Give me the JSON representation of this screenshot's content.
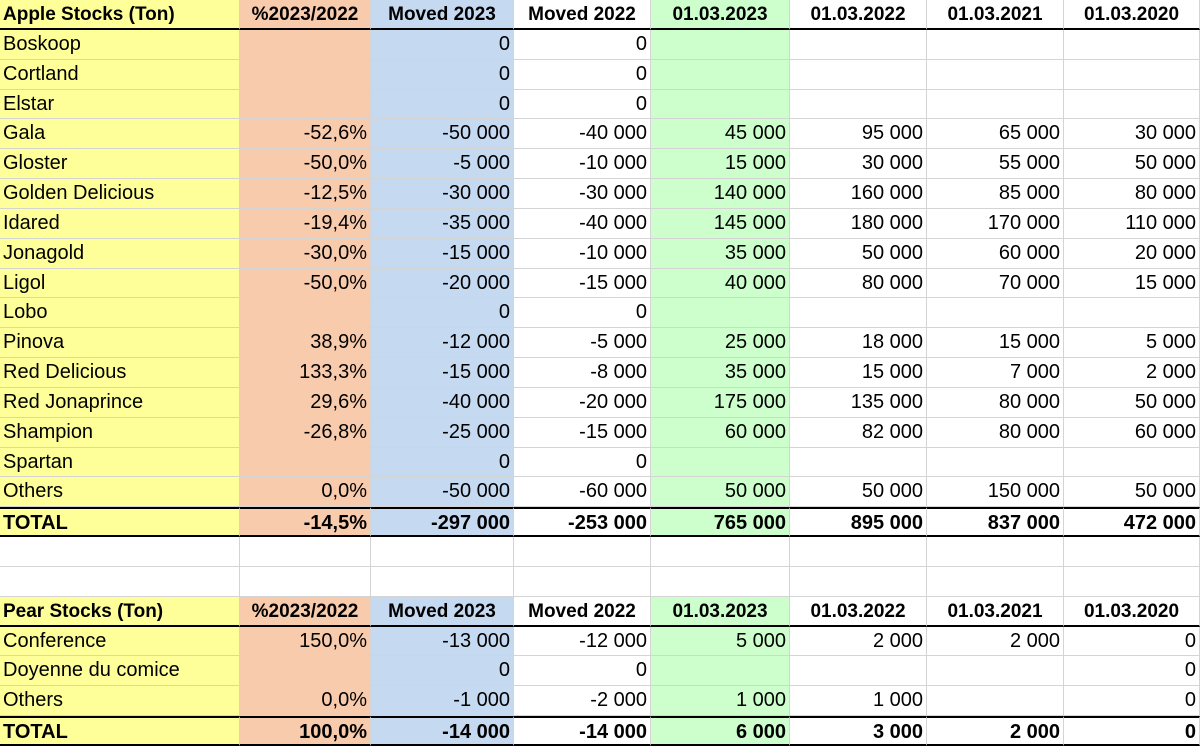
{
  "apple": {
    "header": [
      "Apple Stocks (Ton)",
      "%2023/2022",
      "Moved 2023",
      "Moved 2022",
      "01.03.2023",
      "01.03.2022",
      "01.03.2021",
      "01.03.2020"
    ],
    "rows": [
      [
        "Boskoop",
        null,
        "0",
        "0",
        null,
        null,
        null,
        null
      ],
      [
        "Cortland",
        null,
        "0",
        "0",
        null,
        null,
        null,
        null
      ],
      [
        "Elstar",
        null,
        "0",
        "0",
        null,
        null,
        null,
        null
      ],
      [
        "Gala",
        "-52,6%",
        "-50 000",
        "-40 000",
        "45 000",
        "95 000",
        "65 000",
        "30 000"
      ],
      [
        "Gloster",
        "-50,0%",
        "-5 000",
        "-10 000",
        "15 000",
        "30 000",
        "55 000",
        "50 000"
      ],
      [
        "Golden Delicious",
        "-12,5%",
        "-30 000",
        "-30 000",
        "140 000",
        "160 000",
        "85 000",
        "80 000"
      ],
      [
        "Idared",
        "-19,4%",
        "-35 000",
        "-40 000",
        "145 000",
        "180 000",
        "170 000",
        "110 000"
      ],
      [
        "Jonagold",
        "-30,0%",
        "-15 000",
        "-10 000",
        "35 000",
        "50 000",
        "60 000",
        "20 000"
      ],
      [
        "Ligol",
        "-50,0%",
        "-20 000",
        "-15 000",
        "40 000",
        "80 000",
        "70 000",
        "15 000"
      ],
      [
        "Lobo",
        null,
        "0",
        "0",
        null,
        null,
        null,
        null
      ],
      [
        "Pinova",
        "38,9%",
        "-12 000",
        "-5 000",
        "25 000",
        "18 000",
        "15 000",
        "5 000"
      ],
      [
        "Red Delicious",
        "133,3%",
        "-15 000",
        "-8 000",
        "35 000",
        "15 000",
        "7 000",
        "2 000"
      ],
      [
        "Red Jonaprince",
        "29,6%",
        "-40 000",
        "-20 000",
        "175 000",
        "135 000",
        "80 000",
        "50 000"
      ],
      [
        "Shampion",
        "-26,8%",
        "-25 000",
        "-15 000",
        "60 000",
        "82 000",
        "80 000",
        "60 000"
      ],
      [
        "Spartan",
        null,
        "0",
        "0",
        null,
        null,
        null,
        null
      ],
      [
        "Others",
        "0,0%",
        "-50 000",
        "-60 000",
        "50 000",
        "50 000",
        "150 000",
        "50 000"
      ]
    ],
    "total": [
      "TOTAL",
      "-14,5%",
      "-297 000",
      "-253 000",
      "765 000",
      "895 000",
      "837 000",
      "472 000"
    ]
  },
  "pear": {
    "header": [
      "Pear Stocks (Ton)",
      "%2023/2022",
      "Moved 2023",
      "Moved 2022",
      "01.03.2023",
      "01.03.2022",
      "01.03.2021",
      "01.03.2020"
    ],
    "rows": [
      [
        "Conference",
        "150,0%",
        "-13 000",
        "-12 000",
        "5 000",
        "2 000",
        "2 000",
        "0"
      ],
      [
        "Doyenne du comice",
        null,
        "0",
        "0",
        null,
        null,
        null,
        "0"
      ],
      [
        "Others",
        "0,0%",
        "-1 000",
        "-2 000",
        "1 000",
        "1 000",
        null,
        "0"
      ]
    ],
    "total": [
      "TOTAL",
      "100,0%",
      "-14 000",
      "-14 000",
      "6 000",
      "3 000",
      "2 000",
      "0"
    ]
  }
}
